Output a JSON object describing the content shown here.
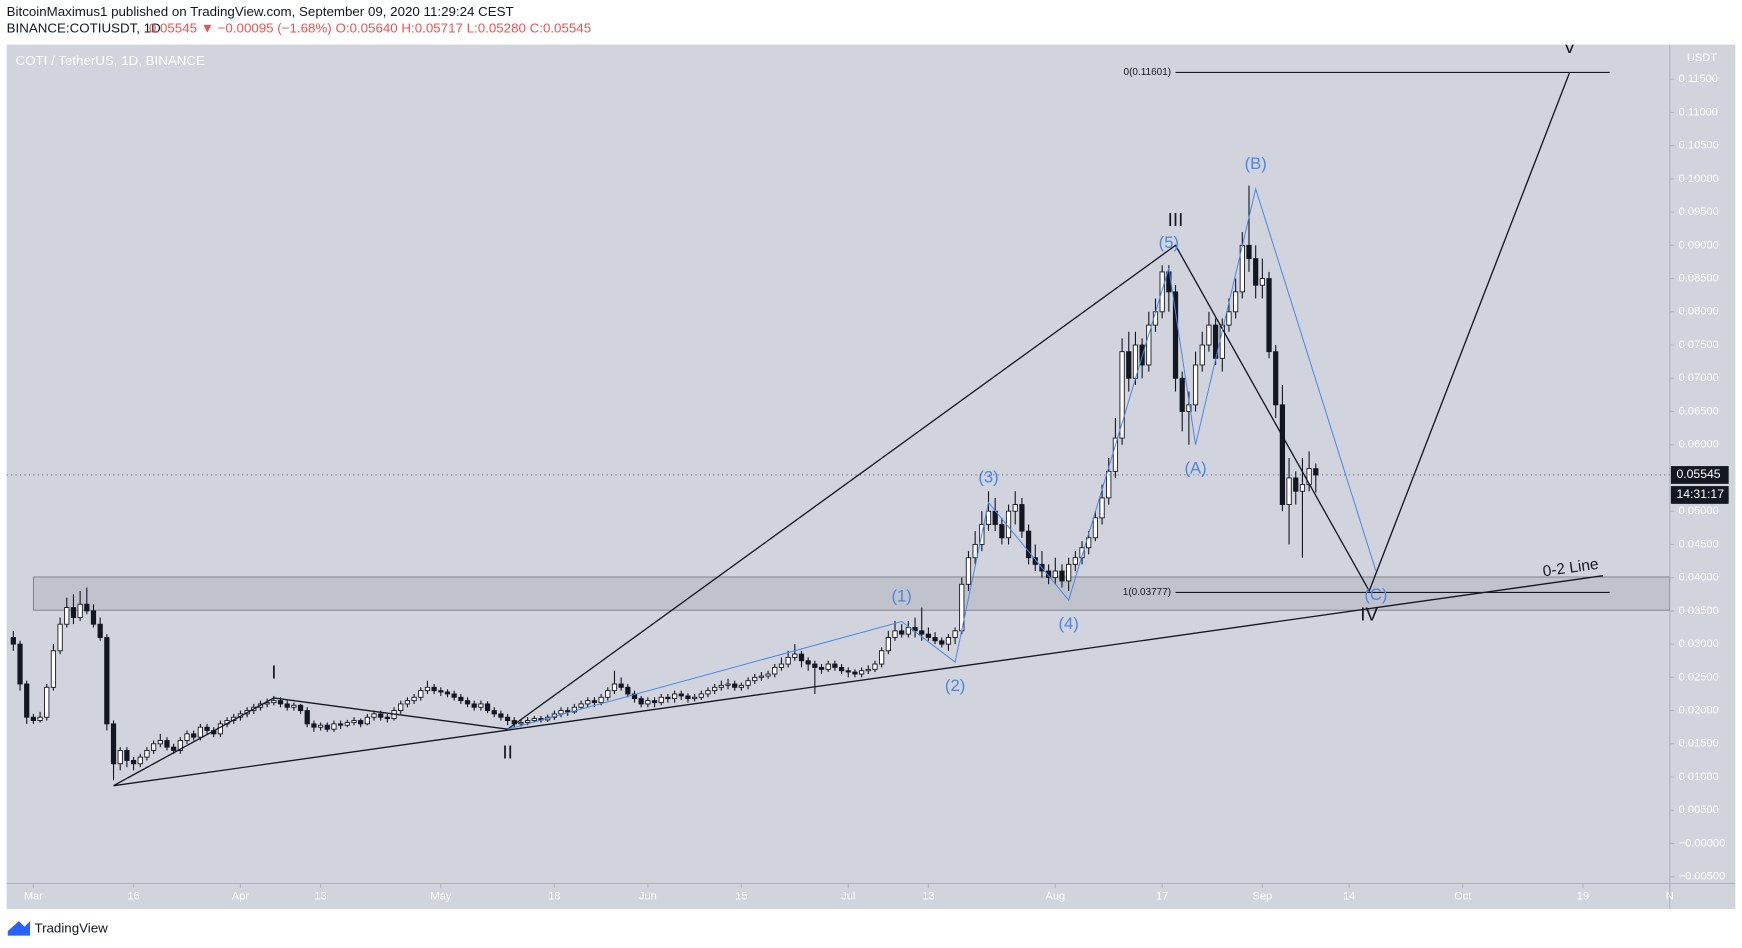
{
  "header": {
    "published": "BitcoinMaximus1 published on TradingView.com, September 09, 2020 11:29:24 CEST",
    "symbol": "BINANCE:COTIUSDT, 1D",
    "quote": "0.05545 ▼ −0.00095 (−1.68%) O:0.05640 H:0.05717 L:0.05280 C:0.05545"
  },
  "footer": {
    "brand": "TradingView"
  },
  "chart_data": {
    "type": "candlestick",
    "title": "COTI / TetherUS, 1D, BINANCE",
    "y_unit": "USDT",
    "up_color": "#ffffff",
    "down_color": "#131722",
    "grid": false,
    "x": [
      "2020-02-27",
      "2020-02-28",
      "2020-02-29",
      "2020-03-01",
      "2020-03-02",
      "2020-03-03",
      "2020-03-04",
      "2020-03-05",
      "2020-03-06",
      "2020-03-07",
      "2020-03-08",
      "2020-03-09",
      "2020-03-10",
      "2020-03-11",
      "2020-03-12",
      "2020-03-13",
      "2020-03-14",
      "2020-03-15",
      "2020-03-16",
      "2020-03-17",
      "2020-03-18",
      "2020-03-19",
      "2020-03-20",
      "2020-03-21",
      "2020-03-22",
      "2020-03-23",
      "2020-03-24",
      "2020-03-25",
      "2020-03-26",
      "2020-03-27",
      "2020-03-28",
      "2020-03-29",
      "2020-03-30",
      "2020-03-31",
      "2020-04-01",
      "2020-04-02",
      "2020-04-03",
      "2020-04-04",
      "2020-04-05",
      "2020-04-06",
      "2020-04-07",
      "2020-04-08",
      "2020-04-09",
      "2020-04-10",
      "2020-04-11",
      "2020-04-12",
      "2020-04-13",
      "2020-04-14",
      "2020-04-15",
      "2020-04-16",
      "2020-04-17",
      "2020-04-18",
      "2020-04-19",
      "2020-04-20",
      "2020-04-21",
      "2020-04-22",
      "2020-04-23",
      "2020-04-24",
      "2020-04-25",
      "2020-04-26",
      "2020-04-27",
      "2020-04-28",
      "2020-04-29",
      "2020-04-30",
      "2020-05-01",
      "2020-05-02",
      "2020-05-03",
      "2020-05-04",
      "2020-05-05",
      "2020-05-06",
      "2020-05-07",
      "2020-05-08",
      "2020-05-09",
      "2020-05-10",
      "2020-05-11",
      "2020-05-12",
      "2020-05-13",
      "2020-05-14",
      "2020-05-15",
      "2020-05-16",
      "2020-05-17",
      "2020-05-18",
      "2020-05-19",
      "2020-05-20",
      "2020-05-21",
      "2020-05-22",
      "2020-05-23",
      "2020-05-24",
      "2020-05-25",
      "2020-05-26",
      "2020-05-27",
      "2020-05-28",
      "2020-05-29",
      "2020-05-30",
      "2020-05-31",
      "2020-06-01",
      "2020-06-02",
      "2020-06-03",
      "2020-06-04",
      "2020-06-05",
      "2020-06-06",
      "2020-06-07",
      "2020-06-08",
      "2020-06-09",
      "2020-06-10",
      "2020-06-11",
      "2020-06-12",
      "2020-06-13",
      "2020-06-14",
      "2020-06-15",
      "2020-06-16",
      "2020-06-17",
      "2020-06-18",
      "2020-06-19",
      "2020-06-20",
      "2020-06-21",
      "2020-06-22",
      "2020-06-23",
      "2020-06-24",
      "2020-06-25",
      "2020-06-26",
      "2020-06-27",
      "2020-06-28",
      "2020-06-29",
      "2020-06-30",
      "2020-07-01",
      "2020-07-02",
      "2020-07-03",
      "2020-07-04",
      "2020-07-05",
      "2020-07-06",
      "2020-07-07",
      "2020-07-08",
      "2020-07-09",
      "2020-07-10",
      "2020-07-11",
      "2020-07-12",
      "2020-07-13",
      "2020-07-14",
      "2020-07-15",
      "2020-07-16",
      "2020-07-17",
      "2020-07-18",
      "2020-07-19",
      "2020-07-20",
      "2020-07-21",
      "2020-07-22",
      "2020-07-23",
      "2020-07-24",
      "2020-07-25",
      "2020-07-26",
      "2020-07-27",
      "2020-07-28",
      "2020-07-29",
      "2020-07-30",
      "2020-07-31",
      "2020-08-01",
      "2020-08-02",
      "2020-08-03",
      "2020-08-04",
      "2020-08-05",
      "2020-08-06",
      "2020-08-07",
      "2020-08-08",
      "2020-08-09",
      "2020-08-10",
      "2020-08-11",
      "2020-08-12",
      "2020-08-13",
      "2020-08-14",
      "2020-08-15",
      "2020-08-16",
      "2020-08-17",
      "2020-08-18",
      "2020-08-19",
      "2020-08-20",
      "2020-08-21",
      "2020-08-22",
      "2020-08-23",
      "2020-08-24",
      "2020-08-25",
      "2020-08-26",
      "2020-08-27",
      "2020-08-28",
      "2020-08-29",
      "2020-08-30",
      "2020-08-31",
      "2020-09-01",
      "2020-09-02",
      "2020-09-03",
      "2020-09-04",
      "2020-09-05",
      "2020-09-06",
      "2020-09-07",
      "2020-09-08",
      "2020-09-09"
    ],
    "open": [
      0.031,
      0.03,
      0.024,
      0.019,
      0.0185,
      0.019,
      0.0235,
      0.029,
      0.033,
      0.0355,
      0.034,
      0.036,
      0.035,
      0.033,
      0.031,
      0.018,
      0.012,
      0.014,
      0.0125,
      0.012,
      0.013,
      0.014,
      0.015,
      0.0155,
      0.0145,
      0.014,
      0.0155,
      0.0165,
      0.016,
      0.0175,
      0.017,
      0.0165,
      0.018,
      0.0185,
      0.019,
      0.0195,
      0.02,
      0.0205,
      0.021,
      0.0212,
      0.0215,
      0.021,
      0.0205,
      0.0208,
      0.02,
      0.018,
      0.0175,
      0.0178,
      0.0172,
      0.018,
      0.0178,
      0.0182,
      0.0185,
      0.018,
      0.019,
      0.0195,
      0.019,
      0.0188,
      0.02,
      0.021,
      0.0215,
      0.022,
      0.023,
      0.0235,
      0.023,
      0.0228,
      0.0225,
      0.022,
      0.0215,
      0.021,
      0.0205,
      0.021,
      0.02,
      0.0195,
      0.019,
      0.0185,
      0.018,
      0.0182,
      0.0185,
      0.0188,
      0.0186,
      0.019,
      0.0195,
      0.02,
      0.0198,
      0.0205,
      0.021,
      0.0215,
      0.0212,
      0.022,
      0.023,
      0.024,
      0.0235,
      0.0225,
      0.0218,
      0.021,
      0.0215,
      0.0212,
      0.022,
      0.0218,
      0.0225,
      0.0222,
      0.0218,
      0.022,
      0.0225,
      0.023,
      0.0235,
      0.0238,
      0.024,
      0.0235,
      0.0238,
      0.0245,
      0.025,
      0.0252,
      0.0255,
      0.0265,
      0.027,
      0.028,
      0.0285,
      0.0275,
      0.027,
      0.0265,
      0.0262,
      0.027,
      0.0265,
      0.026,
      0.0258,
      0.0255,
      0.026,
      0.0262,
      0.027,
      0.029,
      0.031,
      0.032,
      0.0315,
      0.0325,
      0.032,
      0.0315,
      0.031,
      0.0305,
      0.03,
      0.031,
      0.032,
      0.039,
      0.043,
      0.045,
      0.048,
      0.05,
      0.048,
      0.046,
      0.05,
      0.051,
      0.047,
      0.043,
      0.042,
      0.041,
      0.04,
      0.041,
      0.0395,
      0.042,
      0.043,
      0.0445,
      0.046,
      0.049,
      0.052,
      0.056,
      0.061,
      0.074,
      0.07,
      0.075,
      0.072,
      0.078,
      0.08,
      0.086,
      0.083,
      0.07,
      0.065,
      0.066,
      0.072,
      0.075,
      0.078,
      0.073,
      0.078,
      0.08,
      0.083,
      0.09,
      0.088,
      0.084,
      0.085,
      0.074,
      0.066,
      0.051,
      0.055,
      0.053,
      0.054,
      0.0564
    ],
    "high": [
      0.032,
      0.0305,
      0.0245,
      0.0195,
      0.0198,
      0.024,
      0.03,
      0.034,
      0.037,
      0.0375,
      0.038,
      0.0385,
      0.036,
      0.034,
      0.0315,
      0.0185,
      0.0145,
      0.0145,
      0.013,
      0.0135,
      0.0145,
      0.0155,
      0.0165,
      0.016,
      0.015,
      0.016,
      0.017,
      0.017,
      0.018,
      0.018,
      0.0175,
      0.0185,
      0.019,
      0.0195,
      0.02,
      0.0205,
      0.021,
      0.0215,
      0.0218,
      0.0222,
      0.022,
      0.0215,
      0.0212,
      0.021,
      0.0205,
      0.0185,
      0.0182,
      0.0182,
      0.0185,
      0.0185,
      0.0186,
      0.019,
      0.0188,
      0.0195,
      0.02,
      0.02,
      0.0195,
      0.0205,
      0.0215,
      0.022,
      0.0225,
      0.0235,
      0.0245,
      0.024,
      0.0235,
      0.0232,
      0.023,
      0.0225,
      0.022,
      0.0215,
      0.0215,
      0.0214,
      0.0205,
      0.02,
      0.0195,
      0.019,
      0.0186,
      0.019,
      0.0192,
      0.0192,
      0.0194,
      0.02,
      0.0205,
      0.0205,
      0.021,
      0.0215,
      0.022,
      0.022,
      0.0225,
      0.0235,
      0.026,
      0.025,
      0.024,
      0.023,
      0.0222,
      0.022,
      0.022,
      0.0225,
      0.0225,
      0.023,
      0.023,
      0.0226,
      0.0225,
      0.023,
      0.0235,
      0.024,
      0.0245,
      0.0248,
      0.0245,
      0.0242,
      0.025,
      0.0255,
      0.0258,
      0.026,
      0.027,
      0.028,
      0.029,
      0.03,
      0.029,
      0.028,
      0.0275,
      0.027,
      0.0275,
      0.0275,
      0.027,
      0.0265,
      0.0262,
      0.0265,
      0.0268,
      0.0275,
      0.0295,
      0.032,
      0.0335,
      0.033,
      0.0335,
      0.034,
      0.0355,
      0.0325,
      0.0318,
      0.031,
      0.0315,
      0.0325,
      0.04,
      0.044,
      0.047,
      0.05,
      0.053,
      0.052,
      0.049,
      0.051,
      0.053,
      0.052,
      0.048,
      0.045,
      0.044,
      0.042,
      0.043,
      0.042,
      0.043,
      0.044,
      0.0455,
      0.047,
      0.05,
      0.054,
      0.058,
      0.064,
      0.076,
      0.077,
      0.077,
      0.076,
      0.08,
      0.082,
      0.087,
      0.087,
      0.084,
      0.071,
      0.068,
      0.074,
      0.077,
      0.08,
      0.079,
      0.079,
      0.082,
      0.085,
      0.092,
      0.099,
      0.09,
      0.088,
      0.086,
      0.075,
      0.069,
      0.058,
      0.056,
      0.058,
      0.059,
      0.05717
    ],
    "low": [
      0.029,
      0.023,
      0.018,
      0.018,
      0.0182,
      0.0185,
      0.023,
      0.0285,
      0.0325,
      0.033,
      0.0335,
      0.0345,
      0.0325,
      0.0305,
      0.017,
      0.0095,
      0.011,
      0.0115,
      0.011,
      0.0115,
      0.0125,
      0.0135,
      0.0145,
      0.014,
      0.0135,
      0.0135,
      0.015,
      0.0155,
      0.0155,
      0.0165,
      0.016,
      0.016,
      0.0175,
      0.018,
      0.0185,
      0.019,
      0.0195,
      0.02,
      0.0205,
      0.0208,
      0.0205,
      0.02,
      0.02,
      0.0195,
      0.0175,
      0.0168,
      0.017,
      0.0168,
      0.0168,
      0.0172,
      0.0175,
      0.0178,
      0.0175,
      0.0178,
      0.0185,
      0.0185,
      0.0182,
      0.0185,
      0.0195,
      0.0205,
      0.021,
      0.0215,
      0.0225,
      0.0225,
      0.0222,
      0.022,
      0.0215,
      0.021,
      0.0205,
      0.02,
      0.02,
      0.0196,
      0.019,
      0.0185,
      0.0178,
      0.0175,
      0.0176,
      0.0178,
      0.0182,
      0.0182,
      0.0183,
      0.0186,
      0.019,
      0.0192,
      0.0195,
      0.0202,
      0.0205,
      0.0205,
      0.0208,
      0.0215,
      0.0225,
      0.023,
      0.022,
      0.0212,
      0.0205,
      0.0205,
      0.0205,
      0.0208,
      0.0212,
      0.0212,
      0.0216,
      0.0212,
      0.0214,
      0.0216,
      0.022,
      0.0225,
      0.023,
      0.0232,
      0.023,
      0.023,
      0.0232,
      0.024,
      0.0245,
      0.0248,
      0.025,
      0.026,
      0.0265,
      0.0275,
      0.0265,
      0.026,
      0.0225,
      0.0255,
      0.0258,
      0.026,
      0.0255,
      0.025,
      0.025,
      0.025,
      0.0255,
      0.0258,
      0.0265,
      0.0285,
      0.0305,
      0.031,
      0.031,
      0.031,
      0.0305,
      0.0305,
      0.03,
      0.0295,
      0.029,
      0.03,
      0.0315,
      0.038,
      0.042,
      0.044,
      0.047,
      0.047,
      0.045,
      0.045,
      0.048,
      0.046,
      0.042,
      0.041,
      0.04,
      0.039,
      0.039,
      0.0385,
      0.038,
      0.041,
      0.042,
      0.0435,
      0.0455,
      0.048,
      0.051,
      0.055,
      0.06,
      0.068,
      0.069,
      0.07,
      0.071,
      0.077,
      0.079,
      0.08,
      0.068,
      0.062,
      0.06,
      0.065,
      0.071,
      0.074,
      0.072,
      0.071,
      0.077,
      0.079,
      0.082,
      0.086,
      0.082,
      0.082,
      0.073,
      0.064,
      0.05,
      0.045,
      0.051,
      0.043,
      0.053,
      0.0528
    ],
    "close": [
      0.03,
      0.024,
      0.019,
      0.0185,
      0.019,
      0.0235,
      0.029,
      0.033,
      0.0355,
      0.034,
      0.036,
      0.035,
      0.033,
      0.031,
      0.018,
      0.012,
      0.014,
      0.0125,
      0.012,
      0.013,
      0.014,
      0.015,
      0.0155,
      0.0145,
      0.014,
      0.0155,
      0.0165,
      0.016,
      0.0175,
      0.017,
      0.0165,
      0.018,
      0.0185,
      0.019,
      0.0195,
      0.02,
      0.0205,
      0.021,
      0.0212,
      0.0215,
      0.021,
      0.0205,
      0.0208,
      0.02,
      0.018,
      0.0175,
      0.0178,
      0.0172,
      0.018,
      0.0178,
      0.0182,
      0.0185,
      0.018,
      0.019,
      0.0195,
      0.019,
      0.0188,
      0.02,
      0.021,
      0.0215,
      0.022,
      0.023,
      0.0235,
      0.023,
      0.0228,
      0.0225,
      0.022,
      0.0215,
      0.021,
      0.0205,
      0.021,
      0.02,
      0.0195,
      0.019,
      0.0185,
      0.018,
      0.0182,
      0.0185,
      0.0188,
      0.0186,
      0.019,
      0.0195,
      0.02,
      0.0198,
      0.0205,
      0.021,
      0.0215,
      0.0212,
      0.022,
      0.023,
      0.024,
      0.0235,
      0.0225,
      0.0218,
      0.021,
      0.0215,
      0.0212,
      0.022,
      0.0218,
      0.0225,
      0.0222,
      0.0218,
      0.022,
      0.0225,
      0.023,
      0.0235,
      0.0238,
      0.024,
      0.0235,
      0.0238,
      0.0245,
      0.025,
      0.0252,
      0.0255,
      0.0265,
      0.027,
      0.028,
      0.0285,
      0.0275,
      0.027,
      0.0265,
      0.0262,
      0.027,
      0.0265,
      0.026,
      0.0258,
      0.0255,
      0.026,
      0.0262,
      0.027,
      0.029,
      0.031,
      0.032,
      0.0315,
      0.0325,
      0.032,
      0.0315,
      0.031,
      0.0305,
      0.03,
      0.031,
      0.032,
      0.039,
      0.043,
      0.045,
      0.048,
      0.05,
      0.048,
      0.046,
      0.05,
      0.051,
      0.047,
      0.043,
      0.042,
      0.041,
      0.04,
      0.041,
      0.0395,
      0.042,
      0.043,
      0.0445,
      0.046,
      0.049,
      0.052,
      0.056,
      0.061,
      0.074,
      0.07,
      0.075,
      0.072,
      0.078,
      0.08,
      0.086,
      0.083,
      0.07,
      0.065,
      0.066,
      0.072,
      0.075,
      0.078,
      0.073,
      0.078,
      0.08,
      0.083,
      0.09,
      0.088,
      0.084,
      0.085,
      0.074,
      0.066,
      0.051,
      0.055,
      0.053,
      0.054,
      0.0564,
      0.05545
    ],
    "xlim": [
      "2020-02-26",
      "2020-11-01"
    ],
    "xticks": [
      {
        "value": "2020-03-01",
        "label": "Mar"
      },
      {
        "value": "2020-03-16",
        "label": "16"
      },
      {
        "value": "2020-04-01",
        "label": "Apr"
      },
      {
        "value": "2020-04-13",
        "label": "13"
      },
      {
        "value": "2020-05-01",
        "label": "May"
      },
      {
        "value": "2020-05-18",
        "label": "18"
      },
      {
        "value": "2020-06-01",
        "label": "Jun"
      },
      {
        "value": "2020-06-15",
        "label": "15"
      },
      {
        "value": "2020-07-01",
        "label": "Jul"
      },
      {
        "value": "2020-07-13",
        "label": "13"
      },
      {
        "value": "2020-08-01",
        "label": "Aug"
      },
      {
        "value": "2020-08-17",
        "label": "17"
      },
      {
        "value": "2020-09-01",
        "label": "Sep"
      },
      {
        "value": "2020-09-14",
        "label": "14"
      },
      {
        "value": "2020-10-01",
        "label": "Oct"
      },
      {
        "value": "2020-10-19",
        "label": "19"
      },
      {
        "value": "2020-11-01",
        "label": "N"
      }
    ],
    "ylim": [
      -0.006,
      0.1202
    ],
    "yticks": [
      {
        "value": -0.005,
        "label": "−0.00500"
      },
      {
        "value": 0,
        "label": "−0.00000"
      },
      {
        "value": 0.005,
        "label": "0.00500"
      },
      {
        "value": 0.01,
        "label": "0.01000"
      },
      {
        "value": 0.015,
        "label": "0.01500"
      },
      {
        "value": 0.02,
        "label": "0.02000"
      },
      {
        "value": 0.025,
        "label": "0.02500"
      },
      {
        "value": 0.03,
        "label": "0.03000"
      },
      {
        "value": 0.035,
        "label": "0.03500"
      },
      {
        "value": 0.04,
        "label": "0.04000"
      },
      {
        "value": 0.045,
        "label": "0.04500"
      },
      {
        "value": 0.05,
        "label": "0.05000"
      },
      {
        "value": 0.055,
        "label": "0.05500"
      },
      {
        "value": 0.06,
        "label": "0.06000"
      },
      {
        "value": 0.065,
        "label": "0.06500"
      },
      {
        "value": 0.07,
        "label": "0.07000"
      },
      {
        "value": 0.075,
        "label": "0.07500"
      },
      {
        "value": 0.08,
        "label": "0.08000"
      },
      {
        "value": 0.085,
        "label": "0.08500"
      },
      {
        "value": 0.09,
        "label": "0.09000"
      },
      {
        "value": 0.095,
        "label": "0.09500"
      },
      {
        "value": 0.1,
        "label": "0.10000"
      },
      {
        "value": 0.105,
        "label": "0.10500"
      },
      {
        "value": 0.11,
        "label": "0.11000"
      },
      {
        "value": 0.115,
        "label": "0.11500"
      }
    ],
    "last_price": 0.05545,
    "countdown": "14:31:17",
    "support_zone": {
      "from": "2020-03-01",
      "top": 0.0401,
      "bottom": 0.0351
    },
    "fib_levels": {
      "from": "2020-08-19",
      "to": "2020-10-23",
      "levels": [
        {
          "value": 0.11601,
          "label": "0(0.11601)"
        },
        {
          "value": 0.03777,
          "label": "1(0.03777)"
        }
      ]
    },
    "trend_line": {
      "label": "0-2 Line",
      "color": "#131722",
      "dates": [
        "2020-03-13",
        "2020-10-22"
      ],
      "prices": [
        0.0087,
        0.0403
      ]
    },
    "waves": [
      {
        "color": "#131722",
        "labels": [
          null,
          "I",
          "II",
          "III",
          "IV",
          "V"
        ],
        "dates": [
          "2020-03-13",
          "2020-04-06",
          "2020-05-11",
          "2020-08-19",
          "2020-09-17",
          "2020-10-17"
        ],
        "prices": [
          0.0087,
          0.0219,
          0.0172,
          0.09,
          0.038,
          0.116
        ]
      },
      {
        "color": "#4a86e8",
        "labels": [
          null,
          "(1)",
          "(2)",
          "(3)",
          "(4)",
          "(5)",
          "(A)",
          "(B)",
          "(C)"
        ],
        "dates": [
          "2020-05-11",
          "2020-07-09",
          "2020-07-17",
          "2020-07-22",
          "2020-08-03",
          "2020-08-18",
          "2020-08-22",
          "2020-08-31",
          "2020-09-18"
        ],
        "prices": [
          0.0172,
          0.0334,
          0.0273,
          0.0513,
          0.0366,
          0.0866,
          0.06,
          0.0985,
          0.041
        ]
      }
    ]
  }
}
